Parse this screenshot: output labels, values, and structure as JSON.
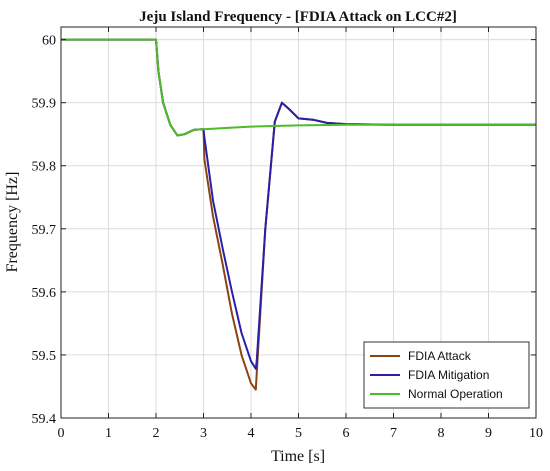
{
  "chart_data": {
    "type": "line",
    "title": "Jeju Island Frequency - [FDIA Attack on LCC#2]",
    "xlabel": "Time [s]",
    "ylabel": "Frequency [Hz]",
    "xlim": [
      0,
      10
    ],
    "ylim": [
      59.4,
      60.02
    ],
    "xticks": [
      "0",
      "1",
      "2",
      "3",
      "4",
      "5",
      "6",
      "7",
      "8",
      "9",
      "10"
    ],
    "yticks": [
      "59.4",
      "59.5",
      "59.6",
      "59.7",
      "59.8",
      "59.9",
      "60"
    ],
    "grid": true,
    "legend": "bottom-right",
    "series": [
      {
        "name": "FDIA Attack",
        "color": "#8B4513",
        "x": [
          0,
          2.0,
          2.05,
          2.15,
          2.3,
          2.45,
          2.6,
          2.8,
          3.0,
          3.02,
          3.2,
          3.4,
          3.6,
          3.8,
          4.0,
          4.1,
          4.12,
          4.3,
          4.5,
          4.65,
          4.8,
          5.0,
          5.3,
          5.6,
          6.0,
          7.0,
          8.0,
          9.0,
          10.0
        ],
        "y": [
          60.0,
          60.0,
          59.95,
          59.9,
          59.865,
          59.848,
          59.85,
          59.857,
          59.858,
          59.81,
          59.72,
          59.645,
          59.565,
          59.5,
          59.455,
          59.445,
          59.47,
          59.7,
          59.87,
          59.9,
          59.89,
          59.875,
          59.873,
          59.868,
          59.866,
          59.865,
          59.865,
          59.865,
          59.865
        ]
      },
      {
        "name": "FDIA Mitigation",
        "color": "#2A1FA8",
        "x": [
          0,
          2.0,
          2.05,
          2.15,
          2.3,
          2.45,
          2.6,
          2.8,
          3.0,
          3.02,
          3.2,
          3.4,
          3.6,
          3.8,
          4.0,
          4.1,
          4.12,
          4.3,
          4.5,
          4.65,
          4.8,
          5.0,
          5.3,
          5.6,
          6.0,
          7.0,
          8.0,
          9.0,
          10.0
        ],
        "y": [
          60.0,
          60.0,
          59.95,
          59.9,
          59.865,
          59.848,
          59.85,
          59.857,
          59.858,
          59.845,
          59.745,
          59.67,
          59.6,
          59.535,
          59.49,
          59.478,
          59.49,
          59.7,
          59.87,
          59.9,
          59.89,
          59.875,
          59.873,
          59.868,
          59.866,
          59.865,
          59.865,
          59.865,
          59.865
        ]
      },
      {
        "name": "Normal Operation",
        "color": "#4DBB2A",
        "x": [
          0,
          2.0,
          2.05,
          2.15,
          2.3,
          2.45,
          2.6,
          2.8,
          3.0,
          3.5,
          4.0,
          5.0,
          6.0,
          7.0,
          8.0,
          9.0,
          10.0
        ],
        "y": [
          60.0,
          60.0,
          59.95,
          59.9,
          59.865,
          59.848,
          59.85,
          59.857,
          59.858,
          59.86,
          59.862,
          59.864,
          59.865,
          59.865,
          59.865,
          59.865,
          59.865
        ]
      }
    ]
  }
}
